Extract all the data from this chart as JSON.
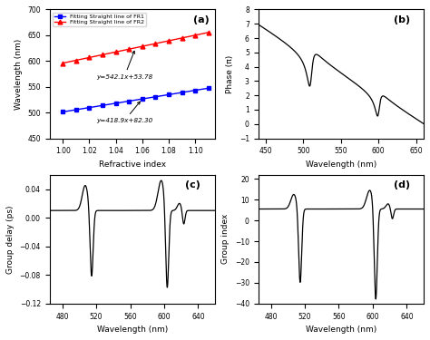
{
  "panel_a": {
    "title": "(a)",
    "xlabel": "Refractive index",
    "ylabel": "Wavelength (nm)",
    "xlim": [
      0.99,
      1.115
    ],
    "ylim": [
      450,
      700
    ],
    "xticks": [
      1.0,
      1.02,
      1.04,
      1.06,
      1.08,
      1.1
    ],
    "yticks": [
      450,
      500,
      550,
      600,
      650,
      700
    ],
    "fr1_color": "blue",
    "fr2_color": "red",
    "fr1_label": "Fitting Straight line of FR1",
    "fr2_label": "Fitting Straight line of FR2",
    "fr1_eq": "y=418.9x+82.30",
    "fr2_eq": "y=542.1x+53.78",
    "ri_points": [
      1.0,
      1.01,
      1.02,
      1.03,
      1.04,
      1.05,
      1.06,
      1.07,
      1.08,
      1.09,
      1.1,
      1.11
    ],
    "fr1_slope": 418.9,
    "fr1_intercept": 82.3,
    "fr2_slope": 542.1,
    "fr2_intercept": 53.78
  },
  "panel_b": {
    "title": "(b)",
    "xlabel": "Wavelength (nm)",
    "ylabel": "Phase (π)",
    "xlim": [
      440,
      660
    ],
    "ylim": [
      -1,
      8
    ],
    "xticks": [
      450,
      500,
      550,
      600,
      650
    ],
    "yticks": [
      -1,
      0,
      1,
      2,
      3,
      4,
      5,
      6,
      7,
      8
    ]
  },
  "panel_c": {
    "title": "(c)",
    "xlabel": "Wavelength (nm)",
    "ylabel": "Group delay (ps)",
    "xlim": [
      465,
      660
    ],
    "ylim": [
      -0.12,
      0.06
    ],
    "xticks": [
      480,
      520,
      560,
      600,
      640
    ],
    "yticks": [
      -0.12,
      -0.08,
      -0.04,
      0,
      0.04
    ]
  },
  "panel_d": {
    "title": "(d)",
    "xlabel": "Wavelength (nm)",
    "ylabel": "Group index",
    "xlim": [
      465,
      660
    ],
    "ylim": [
      -40,
      22
    ],
    "xticks": [
      480,
      520,
      560,
      600,
      640
    ],
    "yticks": [
      -40,
      -30,
      -20,
      -10,
      0,
      10,
      20
    ]
  },
  "line_color": "black",
  "bg_color": "white"
}
